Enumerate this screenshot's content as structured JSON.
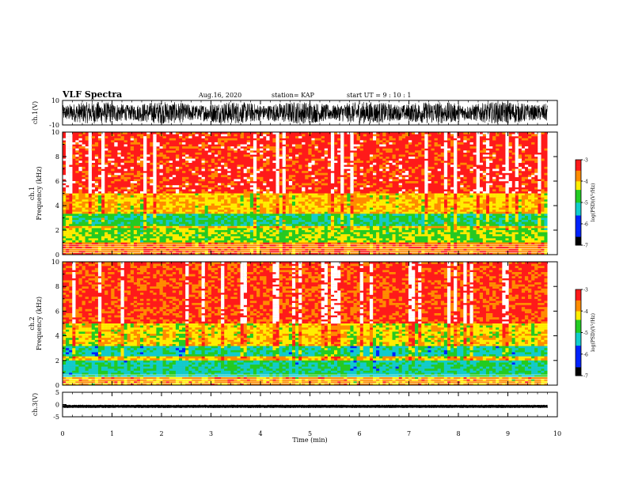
{
  "header": {
    "title": "VLF Spectra",
    "date": "Aug.16, 2020",
    "station": "station= KAP",
    "start_ut": "start  UT =   9 : 10 : 1"
  },
  "chart_data": [
    {
      "type": "line",
      "panel": "ch1-waveform",
      "ylabel": "ch.1(V)",
      "ylim": [
        -10,
        10
      ],
      "y_ticks": [
        "10",
        "-10"
      ],
      "x_range_min": [
        0,
        9.8
      ],
      "description_values": "dense oscillating waveform spanning roughly -9 V to +9 V across the whole record"
    },
    {
      "type": "heatmap",
      "panel": "ch1-spectrogram",
      "ylabel": "ch.1\nFrequency  (kHz)",
      "ylim": [
        0,
        10
      ],
      "y_ticks": [
        "0",
        "2",
        "4",
        "6",
        "8",
        "10"
      ],
      "x_range_min": [
        0,
        9.8
      ],
      "colorbar": {
        "label": "log(PSD)(V²/Hz)",
        "range": [
          -7,
          -3
        ],
        "ticks": [
          "-3",
          "-4",
          "-5",
          "-6",
          "-7"
        ]
      },
      "bands": [
        {
          "freq_khz": [
            0.0,
            1.0
          ],
          "level": -3.6
        },
        {
          "freq_khz": [
            1.0,
            2.2
          ],
          "level": -4.4
        },
        {
          "freq_khz": [
            2.4,
            3.4
          ],
          "level": -4.9
        },
        {
          "freq_khz": [
            3.4,
            5.0
          ],
          "level": -4.0
        },
        {
          "freq_khz": [
            5.0,
            10.0
          ],
          "level": -3.3
        }
      ]
    },
    {
      "type": "heatmap",
      "panel": "ch2-spectrogram",
      "ylabel": "ch.2\nFrequency  (kHz)",
      "ylim": [
        0,
        10
      ],
      "y_ticks": [
        "0",
        "2",
        "4",
        "6",
        "8",
        "10"
      ],
      "x_range_min": [
        0,
        9.8
      ],
      "colorbar": {
        "label": "log(PSD)(V²/Hz)",
        "range": [
          -7,
          -3
        ],
        "ticks": [
          "-3",
          "-4",
          "-5",
          "-6",
          "-7"
        ]
      },
      "bands": [
        {
          "freq_khz": [
            0.0,
            0.6
          ],
          "level": -3.8
        },
        {
          "freq_khz": [
            0.6,
            2.0
          ],
          "level": -5.0
        },
        {
          "freq_khz": [
            2.4,
            3.2
          ],
          "level": -5.1
        },
        {
          "freq_khz": [
            3.2,
            5.0
          ],
          "level": -4.1
        },
        {
          "freq_khz": [
            5.0,
            10.0
          ],
          "level": -3.4
        }
      ]
    },
    {
      "type": "line",
      "panel": "ch3-waveform",
      "ylabel": "ch.3(V)",
      "ylim": [
        -5,
        5
      ],
      "y_ticks": [
        "5",
        "0",
        "-5"
      ],
      "x_range_min": [
        0,
        9.8
      ],
      "level_v": [
        -1.2,
        -0.3
      ]
    }
  ],
  "x_axis": {
    "label": "Time  (min)",
    "range": [
      0,
      10
    ],
    "ticks": [
      "0",
      "1",
      "2",
      "3",
      "4",
      "5",
      "6",
      "7",
      "8",
      "9",
      "10"
    ]
  },
  "colors": {
    "white": "#ffffff",
    "red": "#ff1a1a",
    "orange": "#ff8c00",
    "yellow": "#ffee00",
    "green": "#22cc22",
    "cyan": "#11cccc",
    "blue": "#0022ff",
    "black": "#000000"
  }
}
